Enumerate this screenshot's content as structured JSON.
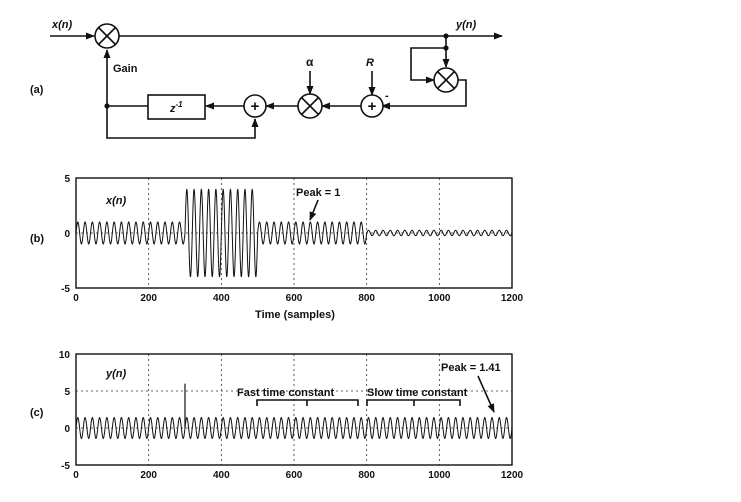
{
  "diagram": {
    "panel_label": "(a)",
    "input_label": "x(n)",
    "output_label": "y(n)",
    "gain_label": "Gain",
    "delay_label": "z",
    "delay_exp": "-1",
    "alpha_label": "α",
    "r_label": "R",
    "minus_sign": "-",
    "adder_symbol": "+"
  },
  "chart_data": [
    {
      "type": "line",
      "panel_label": "(b)",
      "title": "",
      "series_label": "x(n)",
      "annotation": "Peak = 1",
      "xlabel": "Time (samples)",
      "xlim": [
        0,
        1200
      ],
      "ylim": [
        -5,
        5
      ],
      "xticks": [
        0,
        200,
        400,
        600,
        800,
        1000,
        1200
      ],
      "yticks": [
        -5,
        0,
        5
      ],
      "grid": true,
      "segments": [
        {
          "from": 0,
          "to": 300,
          "amplitude": 1
        },
        {
          "from": 300,
          "to": 500,
          "amplitude": 4
        },
        {
          "from": 500,
          "to": 800,
          "amplitude": 1
        },
        {
          "from": 800,
          "to": 1200,
          "amplitude": 0.25
        }
      ]
    },
    {
      "type": "line",
      "panel_label": "(c)",
      "title": "",
      "series_label": "y(n)",
      "annotations": [
        "Peak = 1.41",
        "Fast time constant",
        "Slow time constant"
      ],
      "xlim": [
        0,
        1200
      ],
      "ylim": [
        -5,
        10
      ],
      "xticks": [
        0,
        200,
        400,
        600,
        800,
        1000,
        1200
      ],
      "yticks": [
        -5,
        0,
        5,
        10
      ],
      "grid": true,
      "spike": {
        "x": 300,
        "y": 6
      },
      "segments": [
        {
          "from": 0,
          "to": 300,
          "amplitude": 1.41
        },
        {
          "from": 300,
          "to": 500,
          "amplitude": 1.41
        },
        {
          "from": 500,
          "to": 800,
          "amplitude": 1.41
        },
        {
          "from": 800,
          "to": 1200,
          "amplitude": 1.41
        }
      ]
    }
  ]
}
